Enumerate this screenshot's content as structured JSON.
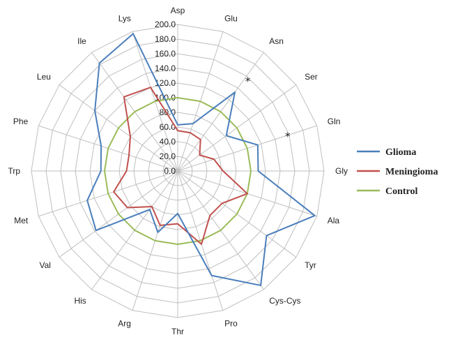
{
  "chart_data": {
    "type": "radar",
    "title": "",
    "axes": [
      "Asp",
      "Glu",
      "Asn",
      "Ser",
      "Gln",
      "Gly",
      "Ala",
      "Tyr",
      "Cys-Cys",
      "Pro",
      "Thr",
      "Arg",
      "His",
      "Val",
      "Met",
      "Trp",
      "Phe",
      "Leu",
      "Ile",
      "Lys"
    ],
    "rlim": [
      0,
      200
    ],
    "ticks": [
      "0.0",
      "20.0",
      "40.0",
      "60.0",
      "80.0",
      "100.0",
      "120.0",
      "140.0",
      "160.0",
      "180.0",
      "200.0"
    ],
    "grid": true,
    "legend_position": "right",
    "series": [
      {
        "name": "Glioma",
        "color": "#4a7ebb",
        "values": [
          63,
          68,
          133,
          82,
          115,
          110,
          197,
          150,
          193,
          150,
          58,
          88,
          65,
          138,
          130,
          105,
          110,
          140,
          182,
          197
        ]
      },
      {
        "name": "Meningioma",
        "color": "#c0504d",
        "values": [
          55,
          55,
          53,
          37,
          52,
          62,
          100,
          75,
          75,
          105,
          72,
          78,
          60,
          85,
          92,
          70,
          70,
          80,
          125,
          120
        ]
      },
      {
        "name": "Control",
        "color": "#9bbb59",
        "values": [
          100,
          100,
          100,
          100,
          100,
          100,
          100,
          100,
          100,
          100,
          100,
          100,
          100,
          100,
          100,
          100,
          100,
          100,
          100,
          100
        ]
      }
    ],
    "annotations": [
      {
        "text": "*",
        "axis": "Asn"
      },
      {
        "text": "*",
        "axis": "Gln"
      }
    ]
  }
}
